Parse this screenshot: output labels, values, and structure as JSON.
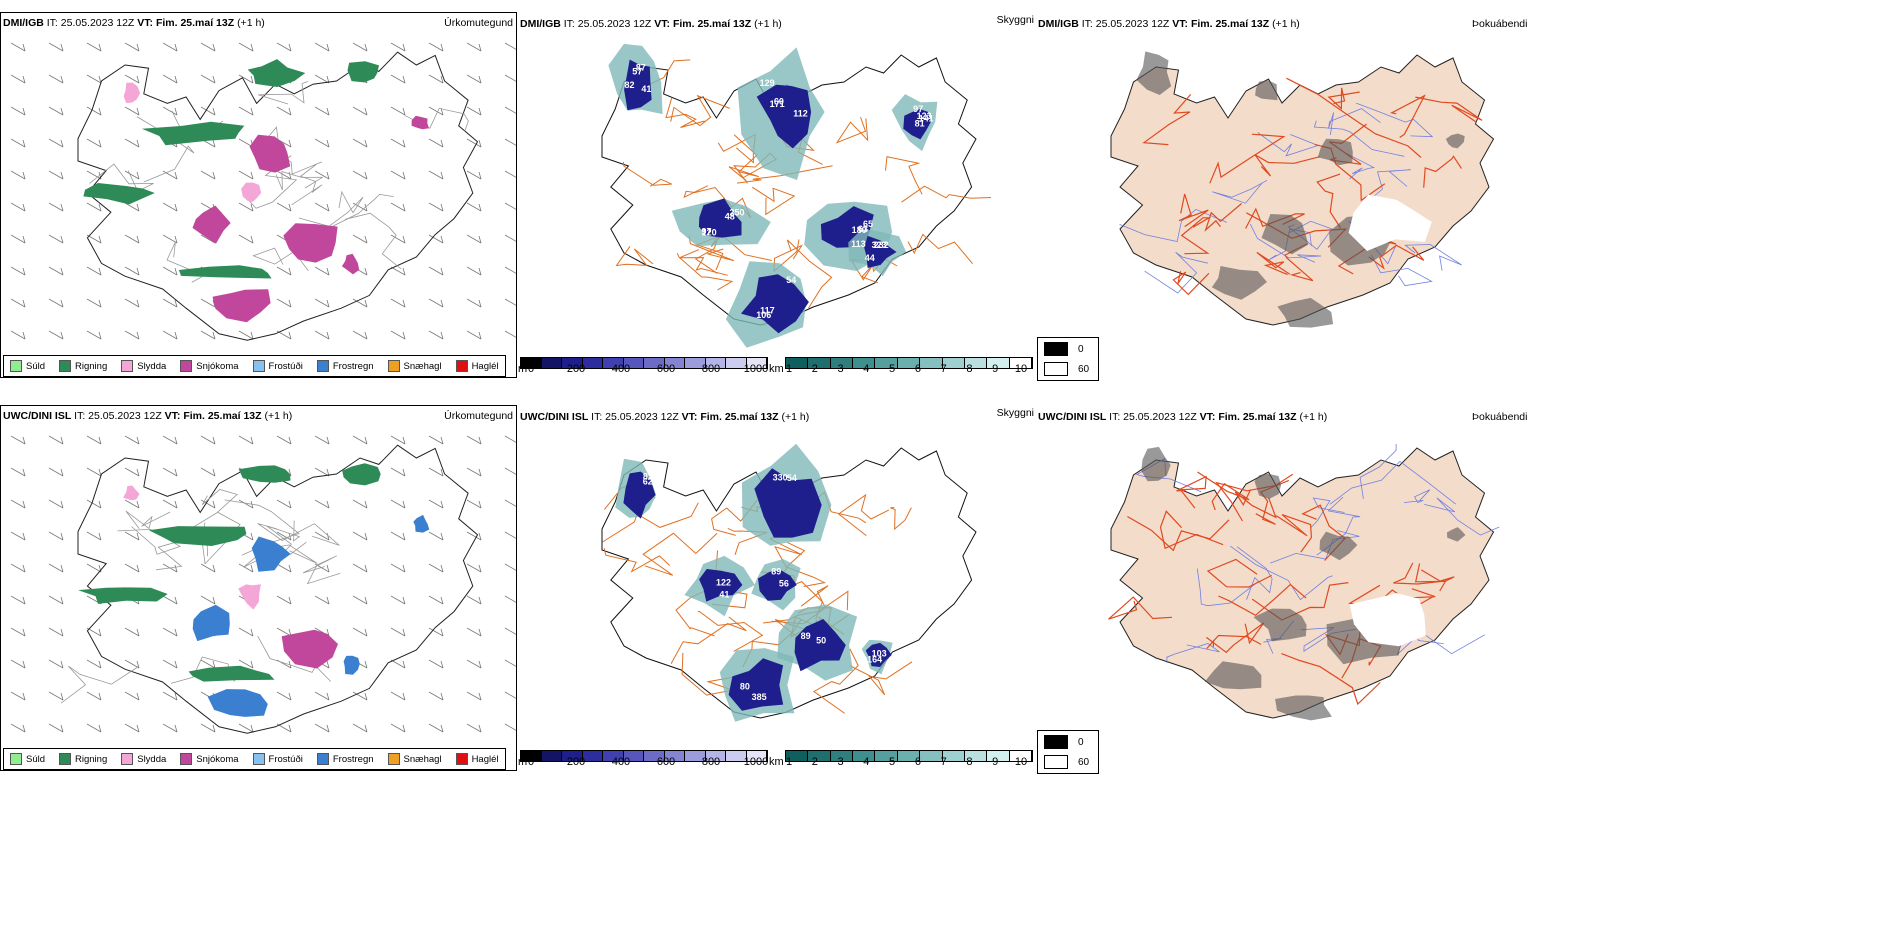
{
  "rows": [
    {
      "model": "DMI/IGB",
      "it_text": "IT: 25.05.2023 12Z",
      "vt_label": "VT:",
      "vt_value": "Fim. 25.maí 13Z",
      "lead": "(+1 h)",
      "precip_param": "Úrkomutegund",
      "vis_param": "Skyggni",
      "fog_param": "Þokuábendi",
      "vis_labels": [
        "82",
        "129",
        "141",
        "250",
        "65",
        "106",
        "232",
        "87",
        "112",
        "97",
        "97",
        "113",
        "54",
        "44",
        "57",
        "171",
        "123",
        "120",
        "180",
        "117",
        "323",
        "41",
        "60",
        "81",
        "48",
        "63"
      ]
    },
    {
      "model": "UWC/DINI ISL",
      "it_text": "IT: 25.05.2023 12Z",
      "vt_label": "VT:",
      "vt_value": "Fim. 25.maí 13Z",
      "lead": "(+1 h)",
      "precip_param": "Úrkomutegund",
      "vis_param": "Skyggni",
      "fog_param": "Þokuábendi",
      "vis_labels": [
        "82",
        "330",
        "122",
        "89",
        "50",
        "385",
        "103",
        "62",
        "54",
        "41",
        "56",
        "89",
        "80",
        "164"
      ]
    }
  ],
  "precip_legend": [
    {
      "label": "Súld",
      "color": "#90ee90"
    },
    {
      "label": "Rigning",
      "color": "#2e8b57"
    },
    {
      "label": "Slydda",
      "color": "#f4a6d7"
    },
    {
      "label": "Snjókoma",
      "color": "#c0479b"
    },
    {
      "label": "Frostúði",
      "color": "#87c1ef"
    },
    {
      "label": "Frostregn",
      "color": "#3a7fd0"
    },
    {
      "label": "Snæhagl",
      "color": "#f0a020"
    },
    {
      "label": "Haglél",
      "color": "#e01010"
    }
  ],
  "vis_colorbar_m": {
    "unit": "m",
    "ticks": [
      "0",
      "200",
      "400",
      "600",
      "800",
      "1000"
    ],
    "colors": [
      "#000000",
      "#141464",
      "#1e1e8c",
      "#2d2da0",
      "#4040b0",
      "#5656bc",
      "#6c6cc6",
      "#8484d0",
      "#9c9cdc",
      "#b4b4e6",
      "#ccccee",
      "#e4e4f6"
    ]
  },
  "vis_colorbar_km": {
    "unit": "km",
    "ticks": [
      "1",
      "2",
      "3",
      "4",
      "5",
      "6",
      "7",
      "8",
      "9",
      "10"
    ],
    "colors": [
      "#0f5f5f",
      "#1f6f6f",
      "#2f7f7f",
      "#3f8f8f",
      "#559f9f",
      "#6cafaf",
      "#86bfbf",
      "#a0cfcf",
      "#badfdf",
      "#d4efef",
      "#ffffff"
    ]
  },
  "fog_legend": [
    {
      "label": "0",
      "color": "#000000"
    },
    {
      "label": "60",
      "color": "#ffffff"
    }
  ],
  "colors": {
    "precip_rain": "#2e8b57",
    "precip_snow": "#c0479b",
    "precip_sleet": "#f4a6d7",
    "precip_freezing": "#3a7fd0",
    "land_fog": "#f4dccb",
    "roads": "#e07020",
    "rivers": "#7080e0",
    "fog_roads": "#e04a20"
  }
}
